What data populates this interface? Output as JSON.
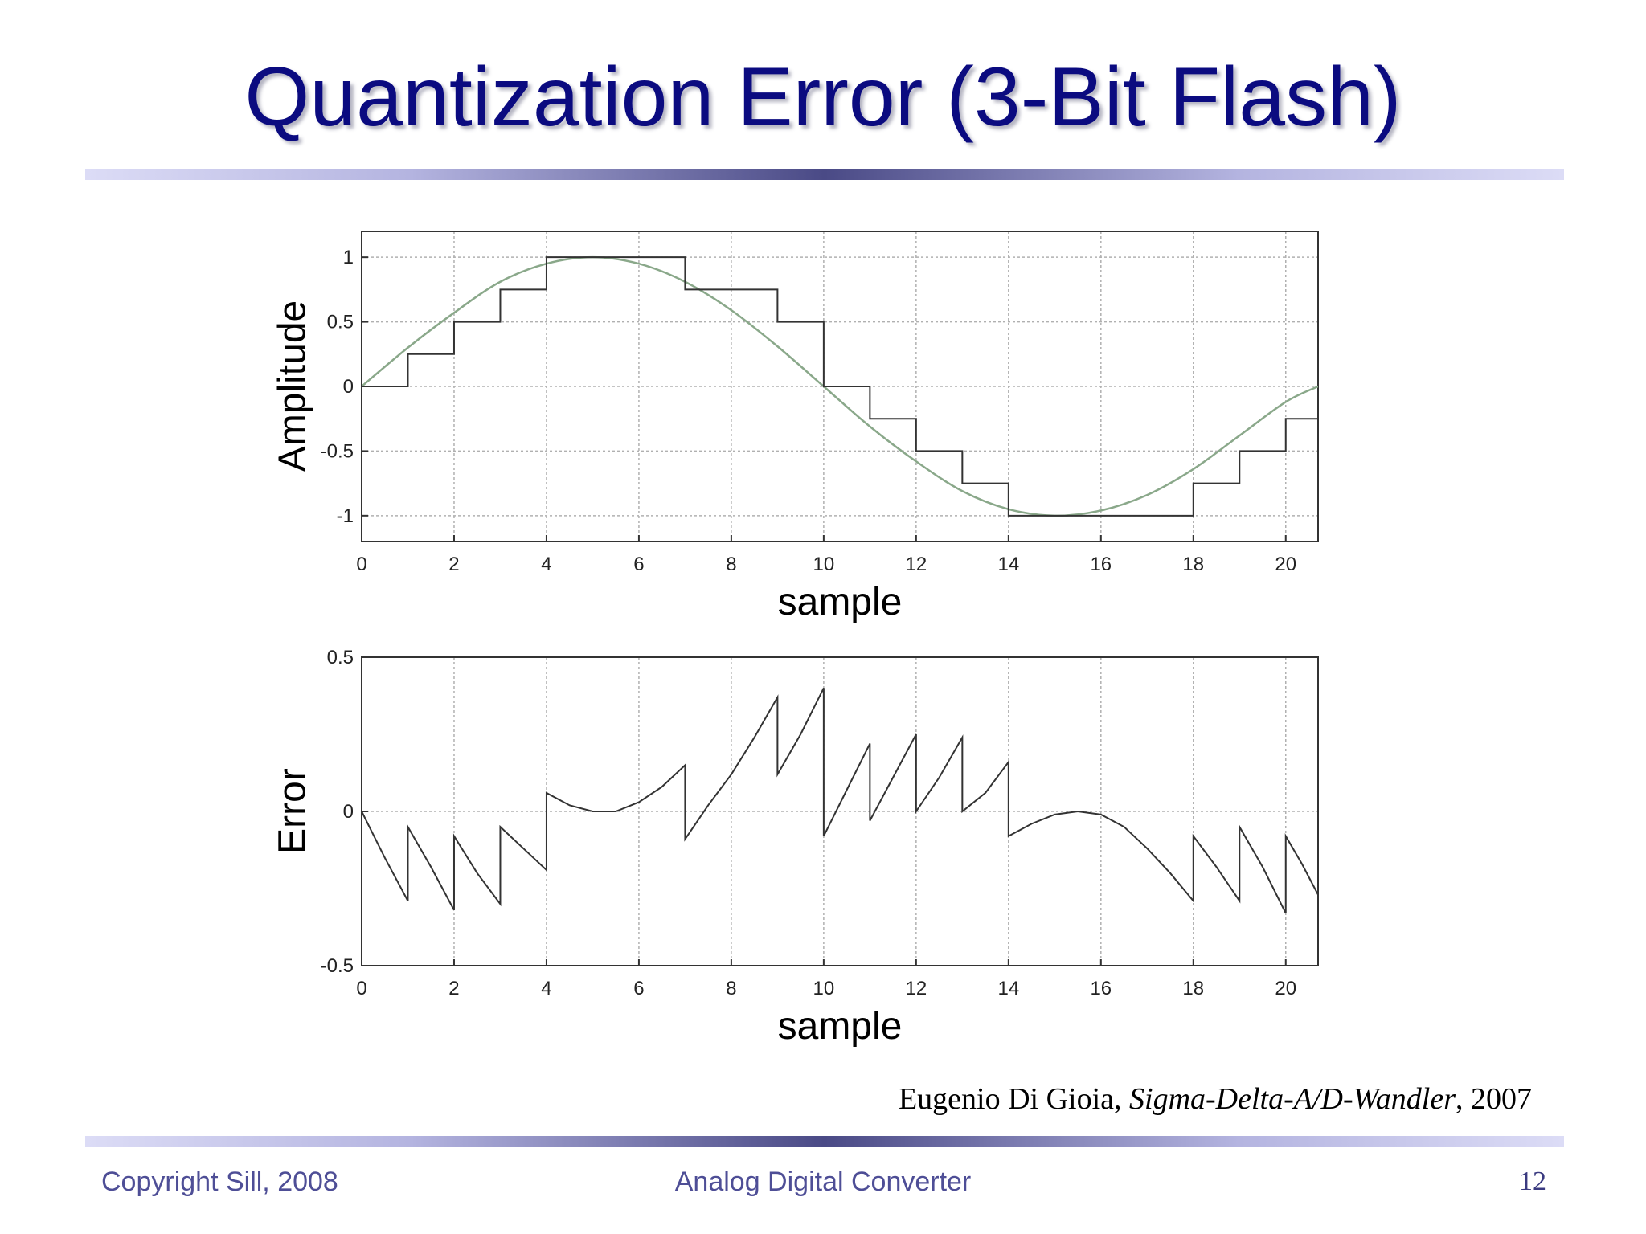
{
  "slide": {
    "title": "Quantization Error (3-Bit Flash)",
    "citation_author": "Eugenio Di Gioia",
    "citation_sep": ", ",
    "citation_work": "Sigma-Delta-A/D-Wandler",
    "citation_year": ", 2007",
    "footer_left": "Copyright Sill, 2008",
    "footer_center": "Analog Digital Converter",
    "page_number": "12"
  },
  "colors": {
    "title": "#0b0b80",
    "sine_curve": "#8aa88a",
    "quantized_curve": "#333333",
    "error_curve": "#333333",
    "grid": "#b0b0b0",
    "footer": "#4e4e96"
  },
  "chart_data": [
    {
      "type": "line",
      "title": "",
      "xlabel": "sample",
      "ylabel": "Amplitude",
      "xlim": [
        0,
        20.7
      ],
      "ylim": [
        -1.2,
        1.2
      ],
      "xticks": [
        0,
        2,
        4,
        6,
        8,
        10,
        12,
        14,
        16,
        18,
        20
      ],
      "yticks": [
        -1,
        -0.5,
        0,
        0.5,
        1
      ],
      "ytick_labels": [
        "-1",
        "-0.5",
        "0",
        "0.5",
        "1"
      ],
      "grid": true,
      "legend": null,
      "series": [
        {
          "style": "smooth",
          "x": [
            0,
            1,
            2,
            3,
            4,
            5,
            6,
            7,
            8,
            9,
            10,
            11,
            12,
            13,
            14,
            15,
            16,
            17,
            18,
            19,
            20,
            20.7
          ],
          "values": [
            0,
            0.3,
            0.57,
            0.81,
            0.95,
            1.0,
            0.95,
            0.81,
            0.59,
            0.31,
            0.0,
            -0.31,
            -0.58,
            -0.81,
            -0.95,
            -1.0,
            -0.96,
            -0.84,
            -0.64,
            -0.38,
            -0.12,
            0.0
          ]
        },
        {
          "style": "step",
          "x": [
            0,
            1,
            2,
            3,
            4,
            7,
            8,
            9,
            10,
            11,
            12,
            13,
            14,
            18,
            19,
            20,
            20.7
          ],
          "values": [
            0,
            0.25,
            0.5,
            0.75,
            1.0,
            0.75,
            0.75,
            0.5,
            0.0,
            -0.25,
            -0.5,
            -0.75,
            -1.0,
            -0.75,
            -0.5,
            -0.25,
            -0.25
          ]
        }
      ]
    },
    {
      "type": "line",
      "title": "",
      "xlabel": "sample",
      "ylabel": "Error",
      "xlim": [
        0,
        20.7
      ],
      "ylim": [
        -0.5,
        0.5
      ],
      "xticks": [
        0,
        2,
        4,
        6,
        8,
        10,
        12,
        14,
        16,
        18,
        20
      ],
      "yticks": [
        -0.5,
        0,
        0.5
      ],
      "ytick_labels": [
        "-0.5",
        "0",
        "0.5"
      ],
      "grid": true,
      "legend": null,
      "series": [
        {
          "style": "polyline",
          "x": [
            0,
            0.5,
            1,
            1.0,
            1.5,
            2,
            2.0,
            2.5,
            3,
            3.0,
            3.5,
            4,
            4.0,
            4.5,
            5,
            5.5,
            6,
            6.5,
            7,
            7.0,
            7.5,
            8,
            8.5,
            9,
            9.0,
            9.5,
            10,
            10.0,
            10.5,
            11,
            11.0,
            11.5,
            12,
            12.0,
            12.5,
            13,
            13.0,
            13.5,
            14,
            14.0,
            14.5,
            15,
            15.5,
            16,
            16.5,
            17,
            17.5,
            18,
            18.0,
            18.5,
            19,
            19.0,
            19.5,
            20,
            20.0,
            20.35,
            20.7
          ],
          "values": [
            0,
            -0.15,
            -0.29,
            -0.05,
            -0.18,
            -0.32,
            -0.08,
            -0.2,
            -0.3,
            -0.05,
            -0.12,
            -0.19,
            0.06,
            0.02,
            0.0,
            0.0,
            0.03,
            0.08,
            0.15,
            -0.09,
            0.02,
            0.12,
            0.24,
            0.37,
            0.12,
            0.25,
            0.4,
            -0.08,
            0.07,
            0.22,
            -0.03,
            0.11,
            0.25,
            0.0,
            0.11,
            0.24,
            0.0,
            0.06,
            0.16,
            -0.08,
            -0.04,
            -0.01,
            0.0,
            -0.01,
            -0.05,
            -0.12,
            -0.2,
            -0.29,
            -0.08,
            -0.18,
            -0.29,
            -0.05,
            -0.18,
            -0.33,
            -0.08,
            -0.17,
            -0.27
          ]
        }
      ]
    }
  ]
}
